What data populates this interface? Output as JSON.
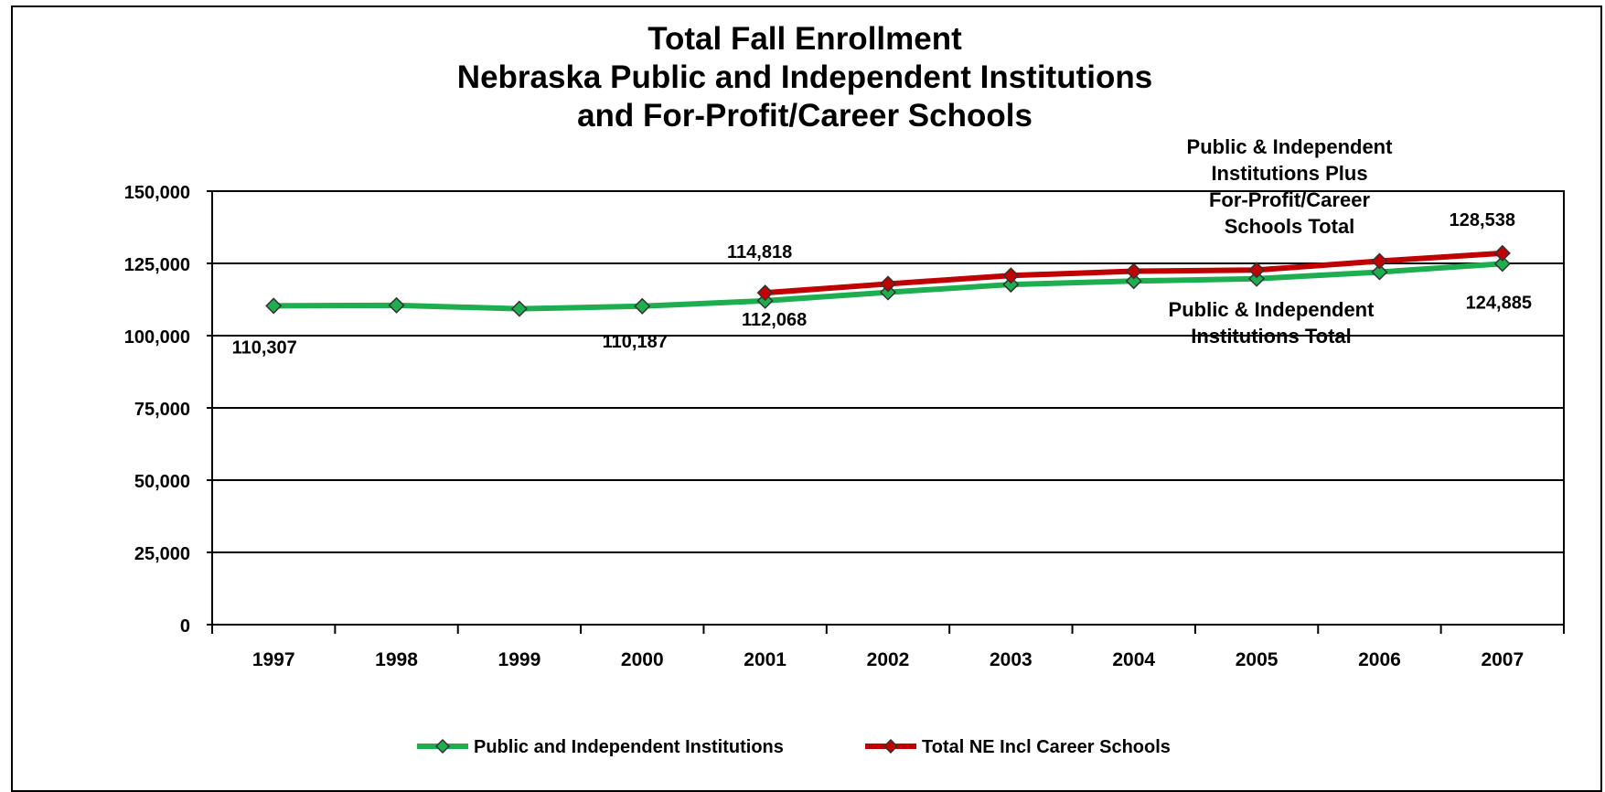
{
  "chart_data": {
    "type": "line",
    "title_lines": [
      "Total Fall Enrollment",
      "Nebraska Public and Independent Institutions",
      "and For-Profit/Career Schools"
    ],
    "x": [
      "1997",
      "1998",
      "1999",
      "2000",
      "2001",
      "2002",
      "2003",
      "2004",
      "2005",
      "2006",
      "2007"
    ],
    "y_ticks": [
      "150,000",
      "125,000",
      "100,000",
      "75,000",
      "50,000",
      "25,000",
      "0"
    ],
    "ylim": [
      0,
      150000
    ],
    "grid": true,
    "legend_position": "bottom",
    "series": [
      {
        "name": "Public and Independent Institutions",
        "color": "#1fae4f",
        "values": [
          110307,
          110500,
          109300,
          110187,
          112068,
          115000,
          117700,
          118900,
          119700,
          122000,
          124885
        ]
      },
      {
        "name": "Total NE Incl Career Schools",
        "color": "#c00000",
        "values": [
          null,
          null,
          null,
          null,
          114818,
          117900,
          120800,
          122300,
          122700,
          125800,
          128538
        ]
      }
    ],
    "data_labels": [
      {
        "text": "110,307",
        "series": 0,
        "index": 0
      },
      {
        "text": "110,187",
        "series": 0,
        "index": 3
      },
      {
        "text": "112,068",
        "series": 0,
        "index": 4
      },
      {
        "text": "114,818",
        "series": 1,
        "index": 4
      },
      {
        "text": "128,538",
        "series": 1,
        "index": 10
      },
      {
        "text": "124,885",
        "series": 0,
        "index": 10
      }
    ],
    "annotations": [
      {
        "lines": [
          "Public & Independent",
          "Institutions Plus",
          "For-Profit/Career",
          "Schools Total"
        ]
      },
      {
        "lines": [
          "Public & Independent",
          "Institutions  Total"
        ]
      }
    ]
  }
}
